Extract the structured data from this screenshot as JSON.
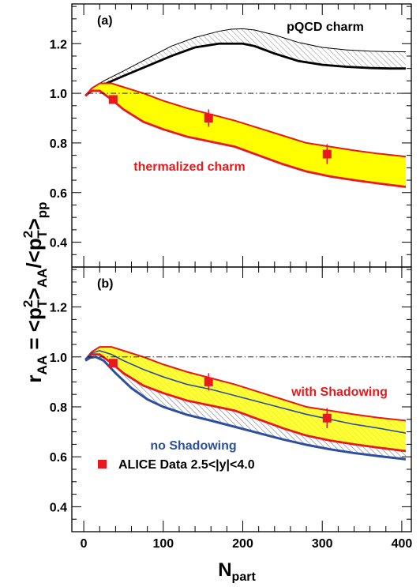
{
  "colors": {
    "pqcd_line": "#000000",
    "thermalized_band_fill": "#ffff00",
    "thermalized_band_edge": "#e8191c",
    "no_shadowing": "#2e4fa0",
    "data_marker": "#e8191c",
    "dash_dot": "#000000",
    "hatch": "#8a8a8a"
  },
  "chart_data": [
    {
      "type": "line",
      "panel_label": "(a)",
      "xlabel": "N",
      "xlabel_sub": "part",
      "ylabel": "r_AA = <p_T^2>_AA/<p_T^2>_pp",
      "xlim": [
        -15,
        412
      ],
      "ylim": [
        0.3,
        1.36
      ],
      "xticks": [
        0,
        100,
        200,
        300,
        400
      ],
      "xtick_labels": [
        "0",
        "100",
        "200",
        "300",
        "400"
      ],
      "yticks": [
        0.4,
        0.6,
        0.8,
        1.0,
        1.2
      ],
      "ytick_labels": [
        "0.4",
        "0.6",
        "0.8",
        "1.0",
        "1.2"
      ],
      "reference_line": 1.0,
      "annotations": [
        "pQCD charm",
        "thermalized charm"
      ],
      "series": [
        {
          "name": "pQCD charm",
          "kind": "hatched_band",
          "x": [
            2,
            10,
            25,
            50,
            80,
            110,
            140,
            170,
            185,
            200,
            215,
            240,
            270,
            300,
            330,
            360,
            385,
            405
          ],
          "upper": [
            0.99,
            1.02,
            1.05,
            1.09,
            1.14,
            1.19,
            1.225,
            1.25,
            1.258,
            1.26,
            1.255,
            1.235,
            1.205,
            1.185,
            1.175,
            1.17,
            1.168,
            1.167
          ],
          "lower": [
            0.99,
            1.015,
            1.035,
            1.07,
            1.11,
            1.15,
            1.185,
            1.2,
            1.2,
            1.2,
            1.19,
            1.16,
            1.13,
            1.115,
            1.107,
            1.102,
            1.1,
            1.1
          ]
        },
        {
          "name": "thermalized charm",
          "kind": "filled_band",
          "x": [
            2,
            10,
            20,
            35,
            50,
            75,
            100,
            130,
            160,
            190,
            220,
            250,
            280,
            310,
            340,
            370,
            405
          ],
          "upper": [
            0.99,
            1.02,
            1.04,
            1.04,
            1.025,
            1.0,
            0.97,
            0.94,
            0.915,
            0.89,
            0.86,
            0.83,
            0.8,
            0.785,
            0.77,
            0.757,
            0.745
          ],
          "lower": [
            0.99,
            1.01,
            1.01,
            0.975,
            0.935,
            0.885,
            0.855,
            0.825,
            0.805,
            0.785,
            0.75,
            0.715,
            0.685,
            0.665,
            0.65,
            0.637,
            0.623
          ]
        },
        {
          "name": "ALICE Data 2.5<|y|<4.0",
          "kind": "points",
          "x": [
            37,
            157,
            306
          ],
          "y": [
            0.975,
            0.9,
            0.755
          ],
          "yerr": [
            0.015,
            0.035,
            0.04
          ]
        }
      ]
    },
    {
      "type": "line",
      "panel_label": "(b)",
      "xlabel": "N",
      "xlabel_sub": "part",
      "ylabel": "r_AA = <p_T^2>_AA/<p_T^2>_pp",
      "xlim": [
        -15,
        412
      ],
      "ylim": [
        0.3,
        1.36
      ],
      "xticks": [
        0,
        100,
        200,
        300,
        400
      ],
      "xtick_labels": [
        "0",
        "100",
        "200",
        "300",
        "400"
      ],
      "yticks": [
        0.4,
        0.6,
        0.8,
        1.0,
        1.2
      ],
      "ytick_labels": [
        "0.4",
        "0.6",
        "0.8",
        "1.0",
        "1.2"
      ],
      "reference_line": 1.0,
      "annotations": [
        "with Shadowing",
        "no Shadowing"
      ],
      "legend": {
        "marker_label": "ALICE Data 2.5<|y|<4.0",
        "placement": "bottom-left"
      },
      "series": [
        {
          "name": "with Shadowing",
          "kind": "filled_band",
          "x": [
            2,
            10,
            20,
            35,
            50,
            75,
            100,
            130,
            160,
            190,
            220,
            250,
            280,
            310,
            340,
            370,
            405
          ],
          "upper": [
            0.99,
            1.02,
            1.04,
            1.04,
            1.025,
            1.0,
            0.97,
            0.94,
            0.915,
            0.89,
            0.86,
            0.83,
            0.8,
            0.785,
            0.77,
            0.757,
            0.745
          ],
          "lower": [
            0.99,
            1.01,
            1.01,
            0.975,
            0.935,
            0.885,
            0.855,
            0.825,
            0.805,
            0.785,
            0.75,
            0.715,
            0.685,
            0.665,
            0.65,
            0.637,
            0.623
          ],
          "center": [
            0.99,
            1.015,
            1.025,
            1.01,
            0.985,
            0.95,
            0.92,
            0.89,
            0.87,
            0.845,
            0.82,
            0.795,
            0.77,
            0.75,
            0.73,
            0.715,
            0.695
          ]
        },
        {
          "name": "no Shadowing",
          "kind": "line",
          "x": [
            2,
            8,
            15,
            25,
            40,
            60,
            80,
            100,
            130,
            160,
            190,
            220,
            250,
            280,
            310,
            340,
            370,
            405
          ],
          "y": [
            0.985,
            0.997,
            1.0,
            0.985,
            0.935,
            0.875,
            0.83,
            0.8,
            0.768,
            0.745,
            0.72,
            0.695,
            0.67,
            0.648,
            0.63,
            0.615,
            0.603,
            0.59
          ]
        },
        {
          "name": "ALICE Data 2.5<|y|<4.0",
          "kind": "points",
          "x": [
            37,
            157,
            306
          ],
          "y": [
            0.975,
            0.9,
            0.755
          ],
          "yerr": [
            0.015,
            0.035,
            0.04
          ]
        }
      ]
    }
  ]
}
